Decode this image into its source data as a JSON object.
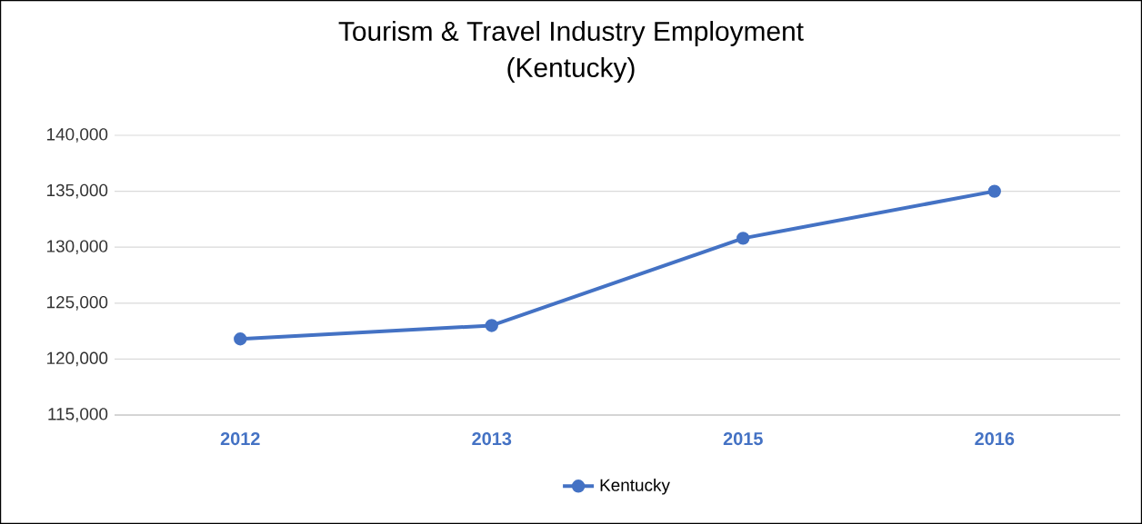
{
  "chart_data": {
    "type": "line",
    "title": "Tourism & Travel Industry Employment",
    "subtitle": "(Kentucky)",
    "categories": [
      "2012",
      "2013",
      "2015",
      "2016"
    ],
    "series": [
      {
        "name": "Kentucky",
        "color": "#4472c4",
        "values": [
          121800,
          123000,
          130800,
          135000
        ]
      }
    ],
    "ylim": [
      115000,
      140000
    ],
    "yticks": [
      {
        "value": 115000,
        "label": "115,000"
      },
      {
        "value": 120000,
        "label": "120,000"
      },
      {
        "value": 125000,
        "label": "125,000"
      },
      {
        "value": 130000,
        "label": "130,000"
      },
      {
        "value": 135000,
        "label": "135,000"
      },
      {
        "value": 140000,
        "label": "140,000"
      }
    ],
    "grid": "y",
    "legend": "bottom",
    "marker": "circle",
    "line_style": "solid"
  }
}
